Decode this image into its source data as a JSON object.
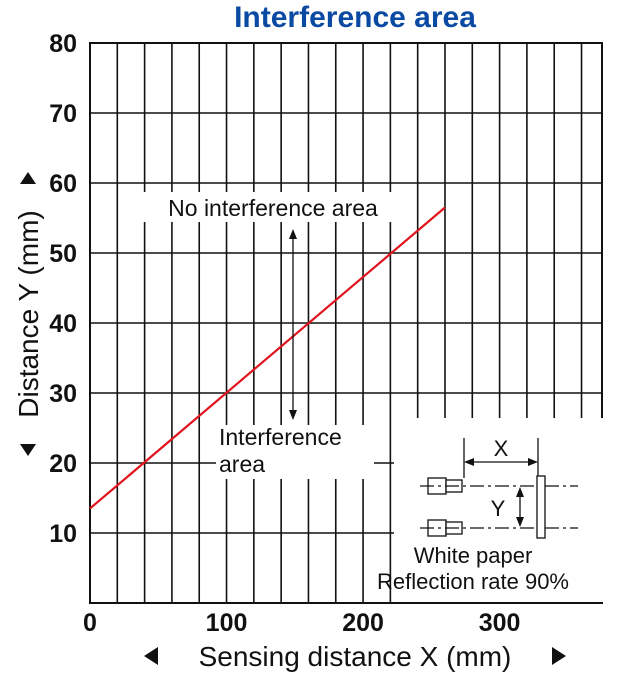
{
  "chart_data": {
    "type": "line",
    "title": "Interference area",
    "xlabel": "Sensing distance X (mm)",
    "ylabel": "Distance Y (mm)",
    "xlim": [
      0,
      375
    ],
    "ylim": [
      0,
      80
    ],
    "x_ticks": [
      0,
      100,
      200,
      300
    ],
    "y_ticks": [
      10,
      20,
      30,
      40,
      50,
      60,
      70,
      80
    ],
    "grid": true,
    "series": [
      {
        "x": [
          0,
          260
        ],
        "y": [
          13.5,
          56.5
        ],
        "color": "#e0141e"
      }
    ],
    "annotations": {
      "above": "No interference area",
      "below_line1": "Interference",
      "below_line2": "area"
    },
    "inset": {
      "x_label": "X",
      "y_label": "Y",
      "caption_line1": "White paper",
      "caption_line2": "Reflection rate 90%"
    }
  }
}
